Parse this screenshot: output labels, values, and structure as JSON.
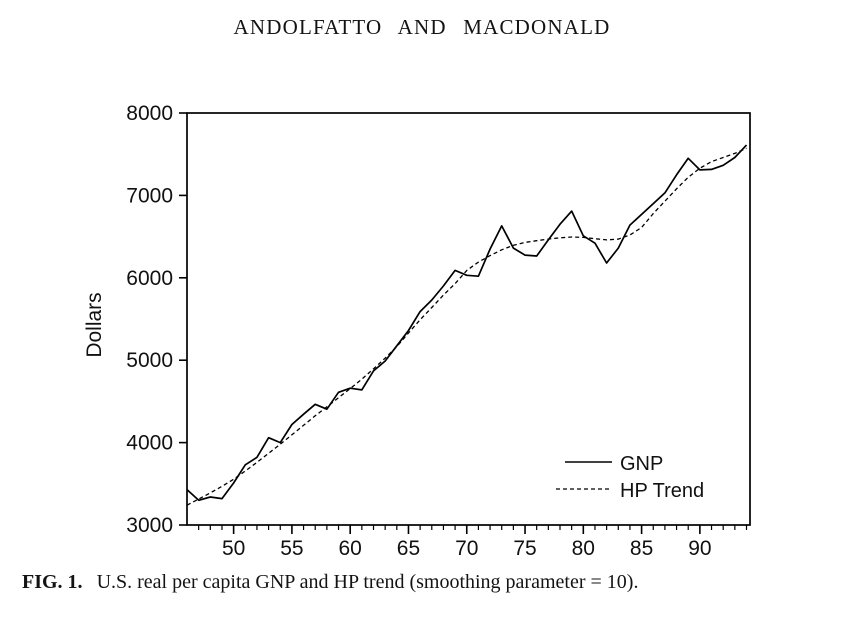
{
  "header": {
    "title": "ANDOLFATTO AND MACDONALD"
  },
  "caption": {
    "label": "FIG. 1.",
    "text": "U.S. real per capita GNP and HP trend (smoothing parameter = 10)."
  },
  "chart_data": {
    "type": "line",
    "title": "",
    "xlabel": "",
    "ylabel": "Dollars",
    "x_range": [
      1946,
      1994.3
    ],
    "y_range": [
      3000,
      8000
    ],
    "y_ticks": [
      3000,
      4000,
      5000,
      6000,
      7000,
      8000
    ],
    "x_ticks_major": [
      1950,
      1955,
      1960,
      1965,
      1970,
      1975,
      1980,
      1985,
      1990
    ],
    "x_tick_labels": [
      "50",
      "55",
      "60",
      "65",
      "70",
      "75",
      "80",
      "85",
      "90"
    ],
    "x_minor_step": 1,
    "grid": false,
    "frame": "full-box",
    "line_color": "#000000",
    "legend": {
      "position": "inside-lower-right",
      "entries": [
        {
          "label": "GNP",
          "style": "solid"
        },
        {
          "label": "HP Trend",
          "style": "dashed"
        }
      ]
    },
    "years": [
      1946,
      1947,
      1948,
      1949,
      1950,
      1951,
      1952,
      1953,
      1954,
      1955,
      1956,
      1957,
      1958,
      1959,
      1960,
      1961,
      1962,
      1963,
      1964,
      1965,
      1966,
      1967,
      1968,
      1969,
      1970,
      1971,
      1972,
      1973,
      1974,
      1975,
      1976,
      1977,
      1978,
      1979,
      1980,
      1981,
      1982,
      1983,
      1984,
      1985,
      1986,
      1987,
      1988,
      1989,
      1990,
      1991,
      1992,
      1993,
      1994
    ],
    "series": [
      {
        "name": "GNP",
        "style": "solid",
        "values": [
          3430,
          3300,
          3340,
          3320,
          3510,
          3730,
          3820,
          4060,
          4000,
          4220,
          4345,
          4465,
          4405,
          4610,
          4660,
          4640,
          4870,
          4990,
          5175,
          5360,
          5590,
          5730,
          5900,
          6090,
          6030,
          6020,
          6350,
          6630,
          6360,
          6275,
          6265,
          6460,
          6650,
          6810,
          6510,
          6420,
          6180,
          6360,
          6640,
          6770,
          6900,
          7030,
          7250,
          7450,
          7310,
          7315,
          7365,
          7460,
          7610
        ]
      },
      {
        "name": "HP Trend",
        "style": "dashed",
        "values": [
          3240,
          3315,
          3390,
          3470,
          3555,
          3655,
          3760,
          3870,
          3980,
          4095,
          4210,
          4325,
          4435,
          4545,
          4655,
          4770,
          4895,
          5025,
          5165,
          5330,
          5490,
          5640,
          5790,
          5930,
          6090,
          6190,
          6270,
          6340,
          6395,
          6430,
          6450,
          6470,
          6485,
          6495,
          6490,
          6475,
          6460,
          6470,
          6520,
          6610,
          6780,
          6930,
          7080,
          7220,
          7330,
          7410,
          7460,
          7510,
          7570
        ]
      }
    ]
  }
}
